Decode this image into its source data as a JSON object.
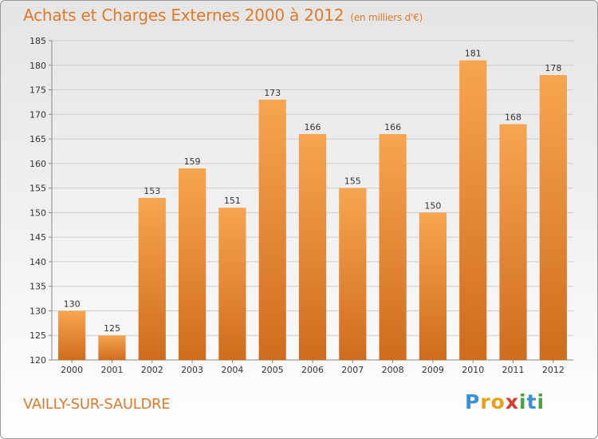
{
  "header": {
    "title": "Achats et Charges Externes 2000 à 2012",
    "unit": "(en milliers d'€)"
  },
  "footer": {
    "city": "VAILLY-SUR-SAULDRE",
    "logo_letters": [
      "P",
      "r",
      "o",
      "x",
      "i",
      "t",
      "i"
    ],
    "logo_colors": [
      "#3a8fd6",
      "#e8a11a",
      "#e8a11a",
      "#d93a2a",
      "#4aa33a",
      "#3a8fd6",
      "#4aa33a"
    ]
  },
  "colors": {
    "title": "#e07a2a",
    "bar_light": "#f7a550",
    "bar_dark": "#cf6c1e",
    "grid": "#cccccc",
    "text": "#333333"
  },
  "chart_data": {
    "type": "bar",
    "title": "Achats et Charges Externes 2000 à 2012",
    "categories": [
      "2000",
      "2001",
      "2002",
      "2003",
      "2004",
      "2005",
      "2006",
      "2007",
      "2008",
      "2009",
      "2010",
      "2011",
      "2012"
    ],
    "values": [
      130,
      125,
      153,
      159,
      151,
      173,
      166,
      155,
      166,
      150,
      181,
      168,
      178
    ],
    "ylim": [
      120,
      185
    ],
    "ytick_step": 5,
    "grid": true,
    "data_labels": true
  }
}
